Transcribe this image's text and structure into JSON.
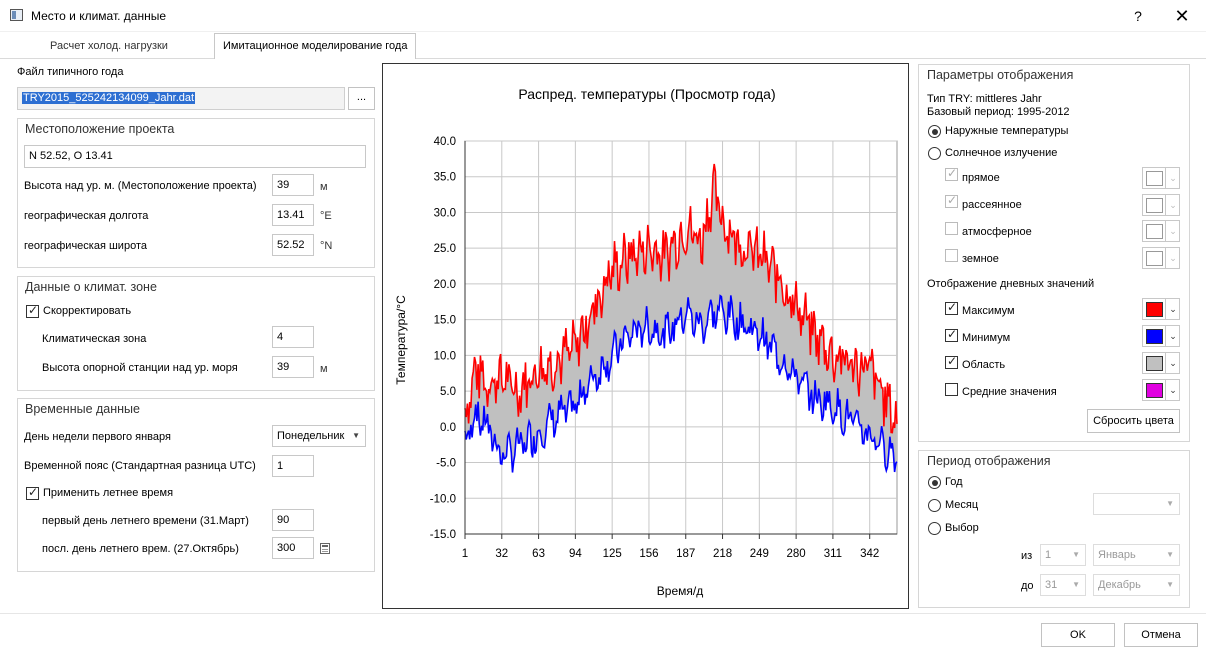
{
  "window": {
    "title": "Место и климат. данные",
    "help": "?",
    "close": "✕"
  },
  "tabs": [
    {
      "label": "Расчет холод. нагрузки"
    },
    {
      "label": "Имитационное моделирование года"
    }
  ],
  "file": {
    "label": "Файл типичного года",
    "value": "TRY2015_525242134099_Jahr.dat",
    "browse": "..."
  },
  "location": {
    "title": "Местоположение проекта",
    "coords": "N 52.52, O 13.41",
    "altitude_label": "Высота над ур. м. (Местоположение проекта)",
    "altitude_value": "39",
    "altitude_unit": "м",
    "lon_label": "географическая долгота",
    "lon_value": "13.41",
    "lon_unit": "°E",
    "lat_label": "географическая широта",
    "lat_value": "52.52",
    "lat_unit": "°N"
  },
  "climate": {
    "title": "Данные о климат. зоне",
    "correct_label": "Скорректировать",
    "correct_checked": true,
    "zone_label": "Климатическая зона",
    "zone_value": "4",
    "station_label": "Высота опорной станции над ур. моря",
    "station_value": "39",
    "station_unit": "м"
  },
  "time": {
    "title": "Временные данные",
    "weekday_label": "День недели первого января",
    "weekday_value": "Понедельник",
    "tz_label": "Временной пояс (Стандартная разница UTC)",
    "tz_value": "1",
    "dst_label": "Применить летнее время",
    "dst_checked": true,
    "dst_first_label": "первый день летнего времени (31.Март)",
    "dst_first_value": "90",
    "dst_last_label": "посл. день летнего врем. (27.Октябрь)",
    "dst_last_value": "300"
  },
  "display": {
    "title": "Параметры отображения",
    "try_type": "Тип TRY: mittleres Jahr",
    "base_period": "Базовый период: 1995-2012",
    "radio_outdoor": "Наружные температуры",
    "radio_solar": "Солнечное излучение",
    "solar_items": [
      {
        "label": "прямое",
        "checked": true
      },
      {
        "label": "рассеянное",
        "checked": true
      },
      {
        "label": "атмосферное",
        "checked": false
      },
      {
        "label": "земное",
        "checked": false
      }
    ],
    "daily_title": "Отображение дневных значений",
    "daily_items": [
      {
        "label": "Максимум",
        "checked": true,
        "color": "#ff0000"
      },
      {
        "label": "Минимум",
        "checked": true,
        "color": "#0000ff"
      },
      {
        "label": "Область",
        "checked": true,
        "color": "#c0c0c0"
      },
      {
        "label": "Средние значения",
        "checked": false,
        "color": "#e000e0"
      }
    ],
    "reset_button": "Сбросить цвета"
  },
  "period": {
    "title": "Период отображения",
    "radio_year": "Год",
    "radio_month": "Месяц",
    "radio_select": "Выбор",
    "from_label": "из",
    "from_day": "1",
    "from_month": "Январь",
    "to_label": "до",
    "to_day": "31",
    "to_month": "Декабрь"
  },
  "buttons": {
    "ok": "OK",
    "cancel": "Отмена"
  },
  "chart_data": {
    "type": "line",
    "title": "Распред. температуры (Просмотр года)",
    "xlabel": "Время/д",
    "ylabel": "Температура/°C",
    "xlim": [
      1,
      365
    ],
    "ylim": [
      -15,
      40
    ],
    "x_ticks": [
      "1",
      "32",
      "63",
      "94",
      "125",
      "156",
      "187",
      "218",
      "249",
      "280",
      "311",
      "342"
    ],
    "y_ticks": [
      "40.0",
      "35.0",
      "30.0",
      "25.0",
      "20.0",
      "15.0",
      "10.0",
      "5.0",
      "0.0",
      "-5.0",
      "-10.0",
      "-15.0"
    ],
    "grid": true,
    "series": [
      {
        "name": "Максимум",
        "color": "#ff0000",
        "x": [
          1,
          10,
          20,
          32,
          45,
          63,
          75,
          94,
          105,
          125,
          140,
          156,
          170,
          187,
          200,
          210,
          218,
          230,
          249,
          265,
          280,
          295,
          311,
          325,
          342,
          355,
          365
        ],
        "values": [
          1.5,
          8,
          6,
          7,
          5,
          8,
          9,
          11,
          15,
          22,
          24,
          25,
          24,
          28,
          26,
          33,
          29,
          26,
          24,
          21,
          17,
          13,
          10,
          9,
          8,
          4,
          0.5
        ]
      },
      {
        "name": "Минимум",
        "color": "#0000ff",
        "x": [
          1,
          10,
          20,
          32,
          45,
          63,
          75,
          94,
          105,
          125,
          140,
          156,
          170,
          187,
          200,
          210,
          218,
          230,
          249,
          265,
          280,
          295,
          311,
          325,
          342,
          355,
          365
        ],
        "values": [
          -2,
          2,
          0,
          -4,
          -3,
          -1,
          1,
          3,
          6,
          10,
          13,
          14,
          13,
          16,
          14,
          16,
          16,
          15,
          13,
          10,
          7,
          4,
          3,
          1,
          -1,
          -3,
          -4
        ]
      }
    ],
    "area": {
      "name": "Область",
      "color": "#c0c0c0"
    }
  }
}
